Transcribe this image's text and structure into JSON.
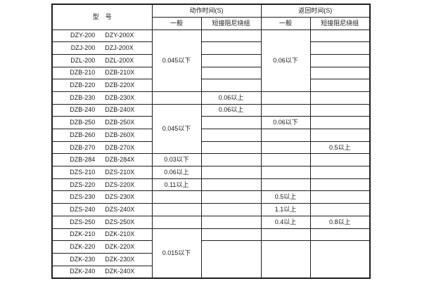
{
  "colors": {
    "border": "#1f1f1f",
    "background": "#ffffff",
    "text": "#1a1a1a"
  },
  "table": {
    "header": {
      "model": "型　号",
      "action": "动作时间(S)",
      "return": "返回时间(S)",
      "action_general": "一般",
      "action_damping": "短接阻尼绕组",
      "return_general": "一般",
      "return_damping": "短接阻尼绕组"
    },
    "column_keys": [
      "action-general",
      "action-damping",
      "return-general",
      "return-damping"
    ],
    "rows": [
      {
        "m": [
          "DZY-200",
          "DZY-200X"
        ],
        "c": [
          {
            "t": "0.045以下",
            "rs": 5
          },
          {
            "t": ""
          },
          {
            "t": "0.06以下",
            "rs": 5
          },
          {
            "t": ""
          }
        ]
      },
      {
        "m": [
          "DZJ-200",
          "DZJ-200X"
        ],
        "c": [
          null,
          {
            "t": ""
          },
          null,
          {
            "t": ""
          }
        ]
      },
      {
        "m": [
          "DZL-200",
          "DZL-200X"
        ],
        "c": [
          null,
          {
            "t": ""
          },
          null,
          {
            "t": ""
          }
        ]
      },
      {
        "m": [
          "DZB-210",
          "DZB-210X"
        ],
        "c": [
          null,
          {
            "t": ""
          },
          null,
          {
            "t": ""
          }
        ]
      },
      {
        "m": [
          "DZB-220",
          "DZB-220X"
        ],
        "c": [
          null,
          {
            "t": ""
          },
          null,
          {
            "t": ""
          }
        ]
      },
      {
        "m": [
          "DZB-230",
          "DZB-230X"
        ],
        "c": [
          {
            "t": ""
          },
          {
            "t": "0.06以上"
          },
          {
            "t": ""
          },
          {
            "t": ""
          }
        ]
      },
      {
        "m": [
          "DZB-240",
          "DZB-240X"
        ],
        "c": [
          {
            "t": "0.045以下",
            "rs": 4
          },
          {
            "t": "0.06以上"
          },
          {
            "t": ""
          },
          {
            "t": ""
          }
        ]
      },
      {
        "m": [
          "DZB-250",
          "DZB-250X"
        ],
        "c": [
          null,
          {
            "t": ""
          },
          {
            "t": "0.06以下"
          },
          {
            "t": ""
          }
        ]
      },
      {
        "m": [
          "DZB-260",
          "DZB-260X"
        ],
        "c": [
          null,
          {
            "t": ""
          },
          {
            "t": ""
          },
          {
            "t": ""
          }
        ]
      },
      {
        "m": [
          "DZB-270",
          "DZB-270X"
        ],
        "c": [
          null,
          {
            "t": ""
          },
          {
            "t": ""
          },
          {
            "t": "0.5以上"
          }
        ]
      },
      {
        "m": [
          "DZB-284",
          "DZB-284X"
        ],
        "c": [
          {
            "t": "0.03以下"
          },
          {
            "t": ""
          },
          {
            "t": ""
          },
          {
            "t": ""
          }
        ]
      },
      {
        "m": [
          "DZS-210",
          "DZS-210X"
        ],
        "c": [
          {
            "t": "0.06以上"
          },
          {
            "t": ""
          },
          {
            "t": ""
          },
          {
            "t": ""
          }
        ]
      },
      {
        "m": [
          "DZS-220",
          "DZS-220X"
        ],
        "c": [
          {
            "t": "0.11以上"
          },
          {
            "t": ""
          },
          {
            "t": ""
          },
          {
            "t": ""
          }
        ]
      },
      {
        "m": [
          "DZS-230",
          "DZS-230X"
        ],
        "c": [
          {
            "t": ""
          },
          {
            "t": ""
          },
          {
            "t": "0.5以上"
          },
          {
            "t": ""
          }
        ]
      },
      {
        "m": [
          "DZS-240",
          "DZS-240X"
        ],
        "c": [
          {
            "t": ""
          },
          {
            "t": ""
          },
          {
            "t": "1.1以上"
          },
          {
            "t": ""
          }
        ]
      },
      {
        "m": [
          "DZS-250",
          "DZS-250X"
        ],
        "c": [
          {
            "t": ""
          },
          {
            "t": ""
          },
          {
            "t": "0.4以上"
          },
          {
            "t": "0.8以上"
          }
        ]
      },
      {
        "m": [
          "DZK-210",
          "DZK-210X"
        ],
        "c": [
          {
            "t": "0.015以下",
            "rs": 4
          },
          {
            "t": ""
          },
          {
            "t": ""
          },
          {
            "t": ""
          }
        ]
      },
      {
        "m": [
          "DZK-220",
          "DZK-220X"
        ],
        "c": [
          null,
          {
            "t": "",
            "rs": 3
          },
          {
            "t": "",
            "rs": 3
          },
          {
            "t": "",
            "rs": 3
          }
        ]
      },
      {
        "m": [
          "DZK-230",
          "DZK-230X"
        ],
        "c": [
          null,
          null,
          null,
          null
        ]
      },
      {
        "m": [
          "DZK-240",
          "DZK-240X"
        ],
        "c": [
          null,
          null,
          null,
          null
        ]
      }
    ]
  }
}
